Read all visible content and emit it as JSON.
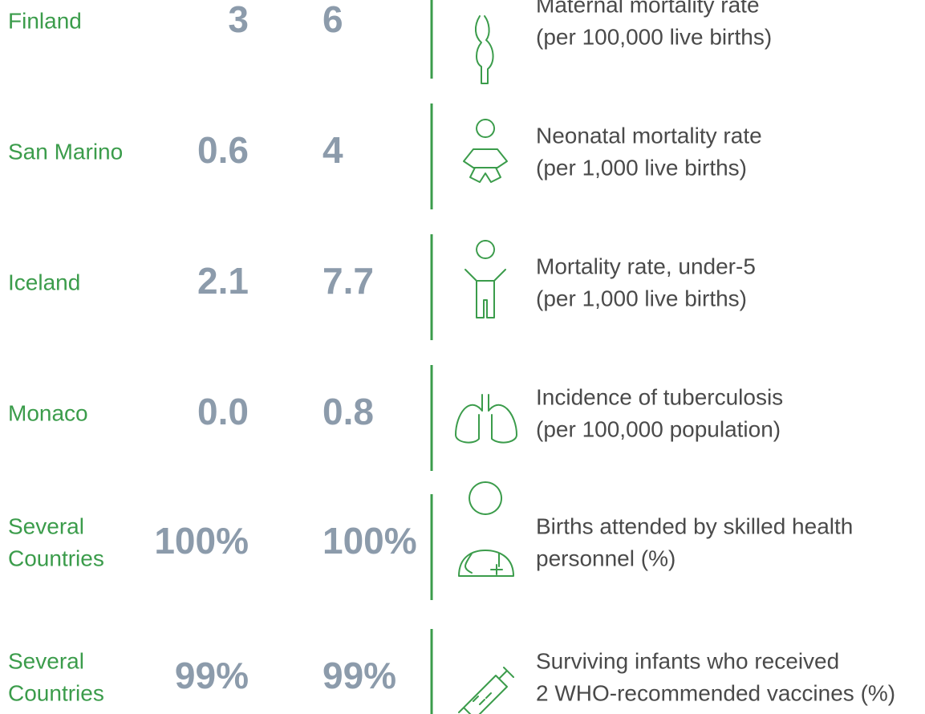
{
  "rows": [
    {
      "country": [
        "Finland"
      ],
      "value1": "3",
      "value2": "6",
      "indicator": [
        "Maternal mortality rate",
        "(per 100,000 live births)"
      ]
    },
    {
      "country": [
        "San Marino"
      ],
      "value1": "0.6",
      "value2": "4",
      "indicator": [
        "Neonatal mortality rate",
        "(per 1,000 live births)"
      ]
    },
    {
      "country": [
        "Iceland"
      ],
      "value1": "2.1",
      "value2": "7.7",
      "indicator": [
        "Mortality rate, under-5",
        "(per 1,000 live births)"
      ]
    },
    {
      "country": [
        "Monaco"
      ],
      "value1": "0.0",
      "value2": "0.8",
      "indicator": [
        "Incidence of tuberculosis",
        "(per 100,000 population)"
      ]
    },
    {
      "country": [
        "Several",
        "Countries"
      ],
      "value1": "100%",
      "value2": "100%",
      "indicator": [
        "Births attended by skilled health",
        "personnel (%)"
      ]
    },
    {
      "country": [
        "Several",
        "Countries"
      ],
      "value1": "99%",
      "value2": "99%",
      "indicator": [
        "Surviving infants who received",
        "2 WHO-recommended vaccines (%)"
      ]
    }
  ]
}
